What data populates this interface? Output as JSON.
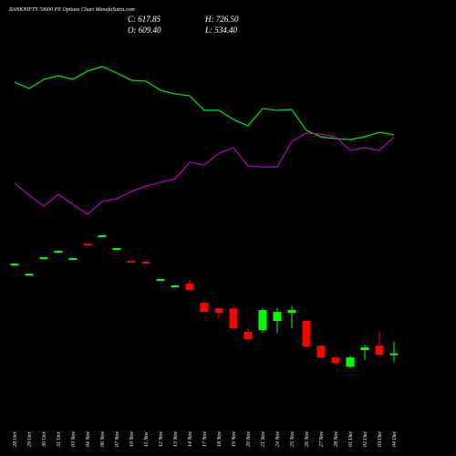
{
  "chart_data": {
    "type": "candlestick",
    "title": "BANKNIFTY 59600 PE Options Chart MunafaSutra.com",
    "annotations": [
      "C: 617.85",
      "H: 726.50",
      "O: 609.40",
      "L: 534.40"
    ],
    "categories": [
      "28 Oct",
      "29 Oct",
      "30 Oct",
      "31 Oct",
      "03 Nov",
      "04 Nov",
      "06 Nov",
      "07 Nov",
      "10 Nov",
      "11 Nov",
      "12 Nov",
      "13 Nov",
      "14 Nov",
      "17 Nov",
      "18 Nov",
      "19 Nov",
      "20 Nov",
      "21 Nov",
      "24 Nov",
      "25 Nov",
      "26 Nov",
      "27 Nov",
      "28 Nov",
      "01 Dec",
      "02 Dec",
      "03 Dec",
      "04 Dec"
    ],
    "open": [
      1460,
      1364,
      1521,
      1583,
      1513,
      1668,
      1731,
      1609,
      1502,
      1494,
      1312,
      1251,
      1285,
      1102,
      1049,
      1049,
      822,
      840,
      927,
      1006,
      927,
      691,
      578,
      491,
      648,
      691,
      609.4
    ],
    "high": [
      1476,
      1380,
      1537,
      1599,
      1529,
      1668,
      1747,
      1625,
      1502,
      1494,
      1328,
      1267,
      1320,
      1102,
      1049,
      1075,
      857,
      1049,
      1049,
      1075,
      927,
      691,
      595,
      595,
      700,
      822,
      726.5
    ],
    "low": [
      1460,
      1364,
      1521,
      1583,
      1513,
      1652,
      1731,
      1609,
      1486,
      1478,
      1312,
      1251,
      1215,
      1014,
      953,
      857,
      752,
      813,
      813,
      857,
      683,
      578,
      508,
      473,
      552,
      587,
      534.4
    ],
    "close": [
      1476,
      1380,
      1537,
      1599,
      1529,
      1652,
      1747,
      1625,
      1486,
      1478,
      1328,
      1267,
      1224,
      1014,
      1006,
      857,
      752,
      1032,
      1014,
      1032,
      683,
      578,
      525,
      578,
      674,
      604,
      617.85
    ],
    "up_color": "#00ff00",
    "down_color": "#ff0000",
    "lines": [
      {
        "color": "#00dd00",
        "values": [
          3214,
          3153,
          3240,
          3275,
          3240,
          3319,
          3363,
          3302,
          3232,
          3223,
          3136,
          3101,
          3083,
          2944,
          2944,
          2856,
          2795,
          2961,
          2944,
          2952,
          2752,
          2690,
          2673,
          2664,
          2690,
          2734,
          2708
        ]
      },
      {
        "color": "#b000b0",
        "values": [
          2245,
          2132,
          2027,
          2140,
          2044,
          1948,
          2071,
          2097,
          2167,
          2219,
          2254,
          2289,
          2446,
          2420,
          2533,
          2586,
          2411,
          2402,
          2402,
          2647,
          2725,
          2717,
          2690,
          2560,
          2586,
          2560,
          2690
        ]
      }
    ],
    "ylim": [
      -365,
      4000
    ]
  }
}
